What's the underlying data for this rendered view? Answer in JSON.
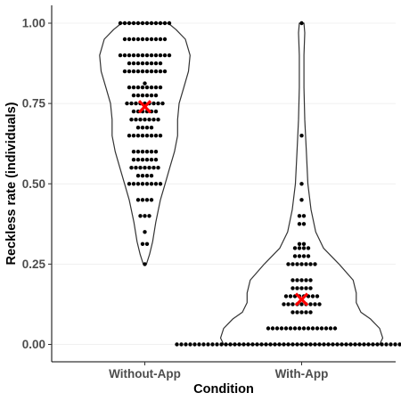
{
  "chart_data": {
    "type": "violin",
    "xlabel": "Condition",
    "ylabel": "Reckless rate (individuals)",
    "categories": [
      "Without-App",
      "With-App"
    ],
    "ylim": [
      -0.04,
      1.05
    ],
    "y_ticks": [
      {
        "value": 0.0,
        "label": "0.00"
      },
      {
        "value": 0.25,
        "label": "0.25"
      },
      {
        "value": 0.5,
        "label": "0.50"
      },
      {
        "value": 0.75,
        "label": "0.75"
      },
      {
        "value": 1.0,
        "label": "1.00"
      }
    ],
    "grid": "horizontal",
    "mean_marker": {
      "shape": "x",
      "color": "#ff0000"
    },
    "means": [
      0.74,
      0.14
    ],
    "density_profiles": [
      {
        "category": "Without-App",
        "points": [
          {
            "y": 0.25,
            "halfwidth": 0.01
          },
          {
            "y": 0.28,
            "halfwidth": 0.03
          },
          {
            "y": 0.32,
            "halfwidth": 0.05
          },
          {
            "y": 0.38,
            "halfwidth": 0.07
          },
          {
            "y": 0.45,
            "halfwidth": 0.1
          },
          {
            "y": 0.5,
            "halfwidth": 0.13
          },
          {
            "y": 0.55,
            "halfwidth": 0.16
          },
          {
            "y": 0.6,
            "halfwidth": 0.19
          },
          {
            "y": 0.65,
            "halfwidth": 0.21
          },
          {
            "y": 0.7,
            "halfwidth": 0.21
          },
          {
            "y": 0.75,
            "halfwidth": 0.22
          },
          {
            "y": 0.8,
            "halfwidth": 0.25
          },
          {
            "y": 0.85,
            "halfwidth": 0.28
          },
          {
            "y": 0.9,
            "halfwidth": 0.29
          },
          {
            "y": 0.95,
            "halfwidth": 0.26
          },
          {
            "y": 0.98,
            "halfwidth": 0.2
          },
          {
            "y": 1.0,
            "halfwidth": 0.15
          }
        ]
      },
      {
        "category": "With-App",
        "points": [
          {
            "y": 0.0,
            "halfwidth": 0.5
          },
          {
            "y": 0.02,
            "halfwidth": 0.52
          },
          {
            "y": 0.05,
            "halfwidth": 0.5
          },
          {
            "y": 0.08,
            "halfwidth": 0.44
          },
          {
            "y": 0.1,
            "halfwidth": 0.38
          },
          {
            "y": 0.13,
            "halfwidth": 0.35
          },
          {
            "y": 0.16,
            "halfwidth": 0.35
          },
          {
            "y": 0.2,
            "halfwidth": 0.33
          },
          {
            "y": 0.25,
            "halfwidth": 0.24
          },
          {
            "y": 0.3,
            "halfwidth": 0.14
          },
          {
            "y": 0.35,
            "halfwidth": 0.09
          },
          {
            "y": 0.42,
            "halfwidth": 0.06
          },
          {
            "y": 0.5,
            "halfwidth": 0.04
          },
          {
            "y": 0.6,
            "halfwidth": 0.03
          },
          {
            "y": 0.7,
            "halfwidth": 0.02
          },
          {
            "y": 0.8,
            "halfwidth": 0.015
          },
          {
            "y": 0.9,
            "halfwidth": 0.015
          },
          {
            "y": 0.97,
            "halfwidth": 0.02
          },
          {
            "y": 1.0,
            "halfwidth": 0.015
          }
        ]
      }
    ],
    "points": [
      {
        "category": "Without-App",
        "values": [
          1.0,
          1.0,
          1.0,
          1.0,
          1.0,
          1.0,
          1.0,
          1.0,
          1.0,
          1.0,
          1.0,
          1.0,
          0.95,
          0.95,
          0.95,
          0.95,
          0.95,
          0.95,
          0.95,
          0.95,
          0.95,
          0.95,
          0.9,
          0.9,
          0.9,
          0.9,
          0.9,
          0.9,
          0.9,
          0.9,
          0.9,
          0.9,
          0.9,
          0.9,
          0.875,
          0.875,
          0.875,
          0.875,
          0.875,
          0.875,
          0.875,
          0.875,
          0.85,
          0.85,
          0.85,
          0.85,
          0.85,
          0.85,
          0.85,
          0.85,
          0.85,
          0.85,
          0.8125,
          0.8,
          0.8,
          0.8,
          0.8,
          0.8,
          0.8,
          0.8,
          0.8,
          0.775,
          0.775,
          0.775,
          0.775,
          0.775,
          0.775,
          0.75,
          0.75,
          0.75,
          0.75,
          0.75,
          0.75,
          0.75,
          0.75,
          0.75,
          0.725,
          0.725,
          0.725,
          0.725,
          0.725,
          0.725,
          0.7,
          0.7,
          0.7,
          0.7,
          0.7,
          0.7,
          0.7,
          0.675,
          0.675,
          0.675,
          0.675,
          0.65,
          0.65,
          0.65,
          0.65,
          0.65,
          0.65,
          0.65,
          0.65,
          0.6,
          0.6,
          0.6,
          0.6,
          0.6,
          0.6,
          0.575,
          0.575,
          0.575,
          0.575,
          0.575,
          0.575,
          0.55,
          0.55,
          0.55,
          0.55,
          0.55,
          0.55,
          0.55,
          0.525,
          0.525,
          0.525,
          0.525,
          0.5,
          0.5,
          0.5,
          0.5,
          0.5,
          0.5,
          0.5,
          0.5,
          0.45,
          0.45,
          0.45,
          0.45,
          0.4,
          0.4,
          0.4,
          0.35,
          0.3125,
          0.3125,
          0.25
        ]
      },
      {
        "category": "With-App",
        "values": [
          1.0,
          0.65,
          0.5,
          0.45,
          0.4,
          0.4,
          0.375,
          0.375,
          0.3,
          0.3,
          0.3,
          0.3,
          0.3125,
          0.3125,
          0.275,
          0.275,
          0.275,
          0.275,
          0.25,
          0.25,
          0.25,
          0.25,
          0.25,
          0.25,
          0.25,
          0.2,
          0.2,
          0.2,
          0.2,
          0.2,
          0.175,
          0.175,
          0.175,
          0.175,
          0.175,
          0.15,
          0.15,
          0.15,
          0.15,
          0.15,
          0.15,
          0.15,
          0.15,
          0.125,
          0.125,
          0.125,
          0.125,
          0.125,
          0.125,
          0.125,
          0.125,
          0.125,
          0.1,
          0.1,
          0.1,
          0.1,
          0.1,
          0.05,
          0.05,
          0.05,
          0.05,
          0.05,
          0.05,
          0.05,
          0.05,
          0.05,
          0.05,
          0.05,
          0.05,
          0.05,
          0.05,
          0.05,
          0.05,
          0.0,
          0.0,
          0.0,
          0.0,
          0.0,
          0.0,
          0.0,
          0.0,
          0.0,
          0.0,
          0.0,
          0.0,
          0.0,
          0.0,
          0.0,
          0.0,
          0.0,
          0.0,
          0.0,
          0.0,
          0.0,
          0.0,
          0.0,
          0.0,
          0.0,
          0.0,
          0.0,
          0.0,
          0.0,
          0.0,
          0.0,
          0.0,
          0.0,
          0.0,
          0.0,
          0.0,
          0.0,
          0.0,
          0.0,
          0.0,
          0.0,
          0.0,
          0.0,
          0.0,
          0.0,
          0.0,
          0.0,
          0.0,
          0.0,
          0.0,
          0.0,
          0.0,
          0.0,
          0.0,
          0.0,
          0.0,
          0.0
        ]
      }
    ],
    "colors": {
      "violin_stroke": "#333333",
      "point": "#000000",
      "mean": "#ff0000",
      "grid": "#ebebeb",
      "axis": "#000000"
    }
  }
}
